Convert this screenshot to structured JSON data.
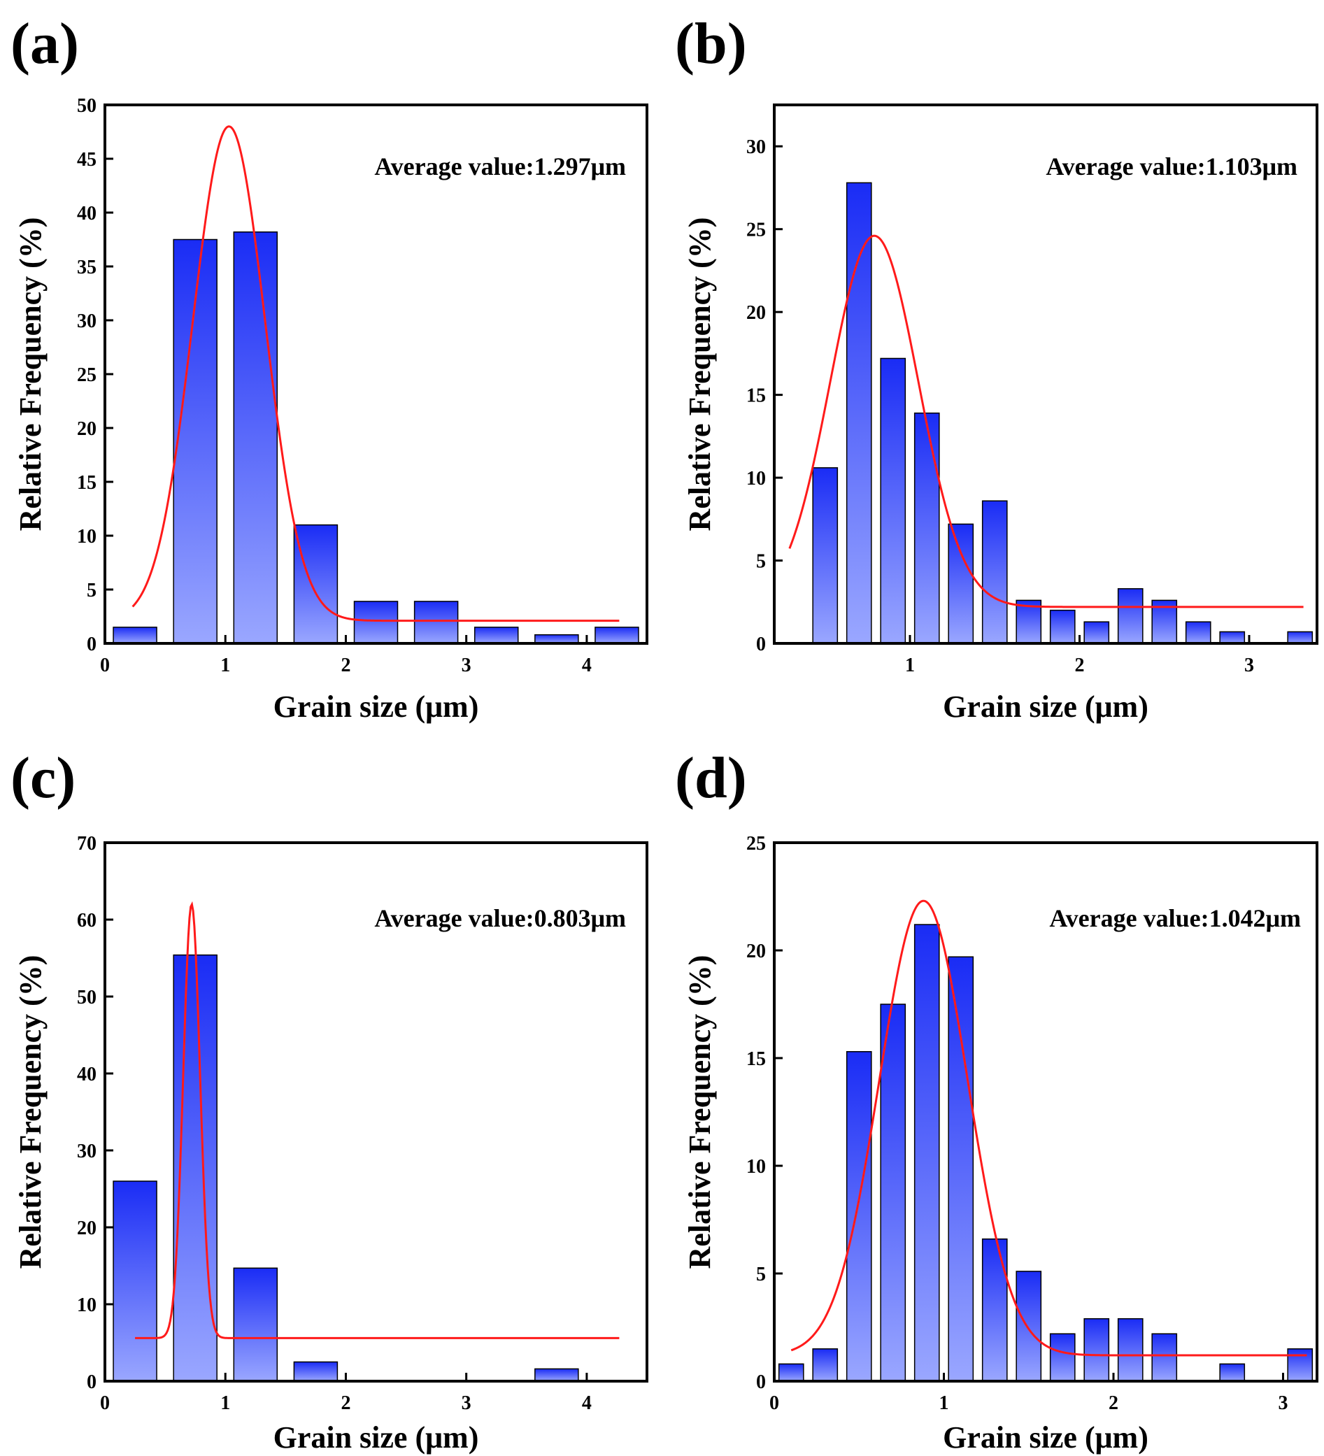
{
  "colors": {
    "bar_top": "#1a2cf5",
    "bar_bottom": "#9aa7ff",
    "fit_line": "#ff1a1a",
    "axis": "#000000"
  },
  "chart_data": [
    {
      "type": "bar",
      "panel_label": "(a)",
      "annotation": "Average value:1.297μm",
      "xlabel": "Grain size (μm)",
      "ylabel": "Relative Frequency (%)",
      "xlim": [
        0,
        4.5
      ],
      "ylim": [
        0,
        50
      ],
      "xticks": [
        0,
        1,
        2,
        3,
        4
      ],
      "yticks": [
        0,
        5,
        10,
        15,
        20,
        25,
        30,
        35,
        40,
        45,
        50
      ],
      "bar_width": 0.36,
      "bars": [
        {
          "x": 0.25,
          "y": 1.5
        },
        {
          "x": 0.75,
          "y": 37.5
        },
        {
          "x": 1.25,
          "y": 38.2
        },
        {
          "x": 1.75,
          "y": 11.0
        },
        {
          "x": 2.25,
          "y": 3.9
        },
        {
          "x": 2.75,
          "y": 3.9
        },
        {
          "x": 3.25,
          "y": 1.5
        },
        {
          "x": 3.75,
          "y": 0.8
        },
        {
          "x": 4.25,
          "y": 1.5
        }
      ],
      "fit": {
        "baseline": 2.1,
        "amplitude": 45.9,
        "center": 1.03,
        "sigma": 0.3,
        "x_range": [
          0.23,
          4.27
        ]
      }
    },
    {
      "type": "bar",
      "panel_label": "(b)",
      "annotation": "Average value:1.103μm",
      "xlabel": "Grain size (μm)",
      "ylabel": "Relative Frequency (%)",
      "xlim": [
        0.2,
        3.4
      ],
      "ylim": [
        0,
        32.5
      ],
      "xticks": [
        1,
        2,
        3
      ],
      "yticks": [
        0,
        5,
        10,
        15,
        20,
        25,
        30
      ],
      "bar_width": 0.145,
      "bars": [
        {
          "x": 0.5,
          "y": 10.6
        },
        {
          "x": 0.7,
          "y": 27.8
        },
        {
          "x": 0.9,
          "y": 17.2
        },
        {
          "x": 1.1,
          "y": 13.9
        },
        {
          "x": 1.3,
          "y": 7.2
        },
        {
          "x": 1.5,
          "y": 8.6
        },
        {
          "x": 1.7,
          "y": 2.6
        },
        {
          "x": 1.9,
          "y": 2.0
        },
        {
          "x": 2.1,
          "y": 1.3
        },
        {
          "x": 2.3,
          "y": 3.3
        },
        {
          "x": 2.5,
          "y": 2.6
        },
        {
          "x": 2.7,
          "y": 1.3
        },
        {
          "x": 2.9,
          "y": 0.7
        },
        {
          "x": 3.3,
          "y": 0.7
        }
      ],
      "fit": {
        "baseline": 2.2,
        "amplitude": 22.4,
        "center": 0.79,
        "sigma": 0.26,
        "x_range": [
          0.29,
          3.32
        ]
      }
    },
    {
      "type": "bar",
      "panel_label": "(c)",
      "annotation": "Average value:0.803μm",
      "xlabel": "Grain size (μm)",
      "ylabel": "Relative Frequency (%)",
      "xlim": [
        0,
        4.5
      ],
      "ylim": [
        0,
        70
      ],
      "xticks": [
        0,
        1,
        2,
        3,
        4
      ],
      "yticks": [
        0,
        10,
        20,
        30,
        40,
        50,
        60,
        70
      ],
      "bar_width": 0.36,
      "bars": [
        {
          "x": 0.25,
          "y": 26.0
        },
        {
          "x": 0.75,
          "y": 55.4
        },
        {
          "x": 1.25,
          "y": 14.7
        },
        {
          "x": 1.75,
          "y": 2.5
        },
        {
          "x": 3.75,
          "y": 1.6
        }
      ],
      "fit": {
        "baseline": 5.6,
        "amplitude": 56.4,
        "center": 0.72,
        "sigma": 0.07,
        "x_range": [
          0.25,
          4.27
        ]
      }
    },
    {
      "type": "bar",
      "panel_label": "(d)",
      "annotation": "Average value:1.042μm",
      "xlabel": "Grain size (μm)",
      "ylabel": "Relative Frequency (%)",
      "xlim": [
        0,
        3.2
      ],
      "ylim": [
        0,
        25
      ],
      "xticks": [
        0,
        1,
        2,
        3
      ],
      "yticks": [
        0,
        5,
        10,
        15,
        20,
        25
      ],
      "bar_width": 0.145,
      "bars": [
        {
          "x": 0.1,
          "y": 0.8
        },
        {
          "x": 0.3,
          "y": 1.5
        },
        {
          "x": 0.5,
          "y": 15.3
        },
        {
          "x": 0.7,
          "y": 17.5
        },
        {
          "x": 0.9,
          "y": 21.2
        },
        {
          "x": 1.1,
          "y": 19.7
        },
        {
          "x": 1.3,
          "y": 6.6
        },
        {
          "x": 1.5,
          "y": 5.1
        },
        {
          "x": 1.7,
          "y": 2.2
        },
        {
          "x": 1.9,
          "y": 2.9
        },
        {
          "x": 2.1,
          "y": 2.9
        },
        {
          "x": 2.3,
          "y": 2.2
        },
        {
          "x": 2.7,
          "y": 0.8
        },
        {
          "x": 3.1,
          "y": 1.5
        }
      ],
      "fit": {
        "baseline": 1.2,
        "amplitude": 21.1,
        "center": 0.88,
        "sigma": 0.26,
        "x_range": [
          0.1,
          3.14
        ]
      }
    }
  ]
}
